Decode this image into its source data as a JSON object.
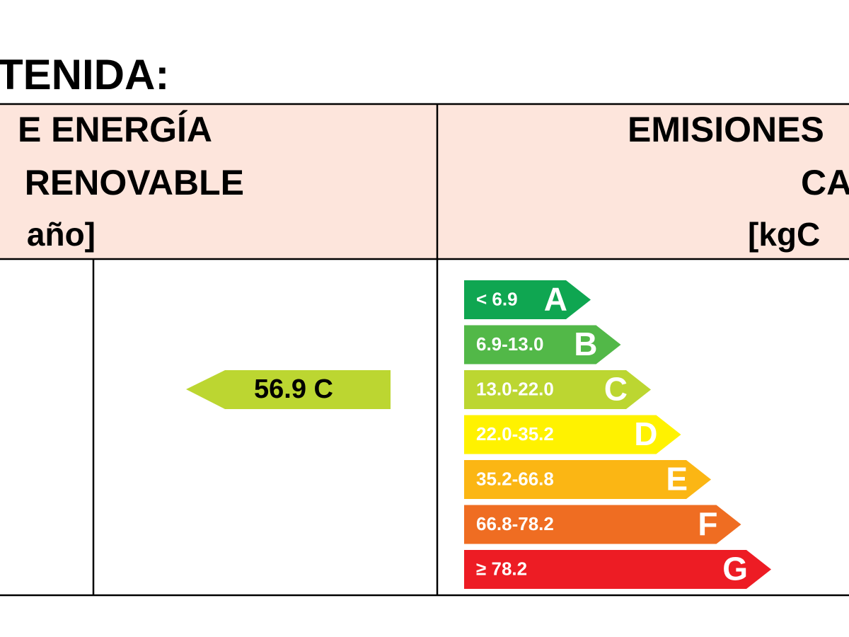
{
  "heading": "TENIDA:",
  "left_header": {
    "lines": [
      "E ENERGÍA",
      "RENOVABLE",
      " año]"
    ]
  },
  "right_header": {
    "lines": [
      "EMISIONES",
      "CA",
      "[kgC"
    ]
  },
  "indicator": {
    "label": "56.9 C",
    "color": "#bcd631"
  },
  "scale": [
    {
      "range": "< 6.9",
      "letter": "A",
      "color": "#0fa651"
    },
    {
      "range": "6.9-13.0",
      "letter": "B",
      "color": "#52b848"
    },
    {
      "range": "13.0-22.0",
      "letter": "C",
      "color": "#bcd631"
    },
    {
      "range": "22.0-35.2",
      "letter": "D",
      "color": "#fff200"
    },
    {
      "range": "35.2-66.8",
      "letter": "E",
      "color": "#fbb614"
    },
    {
      "range": "66.8-78.2",
      "letter": "F",
      "color": "#ef6d22"
    },
    {
      "range": "≥ 78.2",
      "letter": "G",
      "color": "#ed1c24"
    }
  ]
}
